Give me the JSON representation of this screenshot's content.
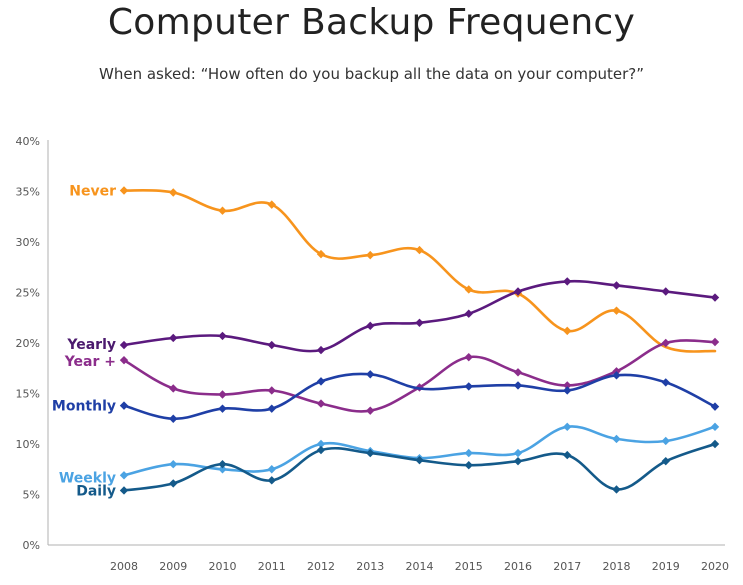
{
  "chart_data": {
    "type": "line",
    "title": "Computer Backup Frequency",
    "subtitle": "When asked: “How often do you backup all the data on your computer?”",
    "xlabel": "",
    "ylabel": "",
    "ylim": [
      0,
      40
    ],
    "y_ticks": [
      "0%",
      "5%",
      "10%",
      "15%",
      "20%",
      "25%",
      "30%",
      "35%",
      "40%"
    ],
    "x": [
      "2008",
      "2009",
      "2010",
      "2011",
      "2012",
      "2013",
      "2014",
      "2015",
      "2016",
      "2017",
      "2018",
      "2019",
      "2020"
    ],
    "grid": false,
    "legend": "inline labels at left",
    "series": [
      {
        "name": "Never",
        "color": "#f7941d",
        "label_color": "#f7941d",
        "values": [
          35.1,
          34.9,
          33.1,
          33.7,
          28.8,
          28.7,
          29.2,
          25.3,
          24.9,
          21.2,
          23.2,
          19.6,
          19.2
        ],
        "markers": [
          true,
          true,
          true,
          true,
          true,
          true,
          true,
          true,
          true,
          true,
          true,
          false,
          false
        ]
      },
      {
        "name": "Yearly",
        "color": "#5b1a7e",
        "label_color": "#4b1a6e",
        "values": [
          19.8,
          20.5,
          20.7,
          19.8,
          19.3,
          21.7,
          22.0,
          22.9,
          25.1,
          26.1,
          25.7,
          25.1,
          24.5
        ],
        "markers": [
          true,
          true,
          true,
          true,
          true,
          true,
          true,
          true,
          true,
          true,
          true,
          true,
          true
        ]
      },
      {
        "name": "Year +",
        "color": "#8b2d8b",
        "label_color": "#8b2d8b",
        "values": [
          18.3,
          15.5,
          14.9,
          15.3,
          14.0,
          13.3,
          15.6,
          18.6,
          17.1,
          15.8,
          17.2,
          20.0,
          20.1
        ],
        "markers": [
          true,
          true,
          true,
          true,
          true,
          true,
          true,
          true,
          true,
          true,
          true,
          true,
          true
        ]
      },
      {
        "name": "Monthly",
        "color": "#1f3fa6",
        "label_color": "#1f3fa6",
        "values": [
          13.8,
          12.5,
          13.5,
          13.5,
          16.2,
          16.9,
          15.5,
          15.7,
          15.8,
          15.3,
          16.8,
          16.1,
          13.7
        ],
        "markers": [
          true,
          true,
          true,
          true,
          true,
          true,
          false,
          true,
          true,
          true,
          true,
          true,
          true
        ]
      },
      {
        "name": "Weekly",
        "color": "#4ba3e3",
        "label_color": "#4ba3e3",
        "values": [
          6.9,
          8.0,
          7.5,
          7.5,
          10.0,
          9.3,
          8.6,
          9.1,
          9.1,
          11.7,
          10.5,
          10.3,
          11.7
        ],
        "markers": [
          true,
          true,
          true,
          true,
          true,
          true,
          true,
          true,
          true,
          true,
          true,
          true,
          true
        ]
      },
      {
        "name": "Daily",
        "color": "#145a8a",
        "label_color": "#145a8a",
        "values": [
          5.4,
          6.1,
          8.0,
          6.4,
          9.4,
          9.1,
          8.4,
          7.9,
          8.3,
          8.9,
          5.5,
          8.3,
          10.0
        ],
        "markers": [
          true,
          true,
          true,
          true,
          true,
          true,
          true,
          true,
          true,
          true,
          true,
          true,
          true
        ]
      }
    ]
  }
}
